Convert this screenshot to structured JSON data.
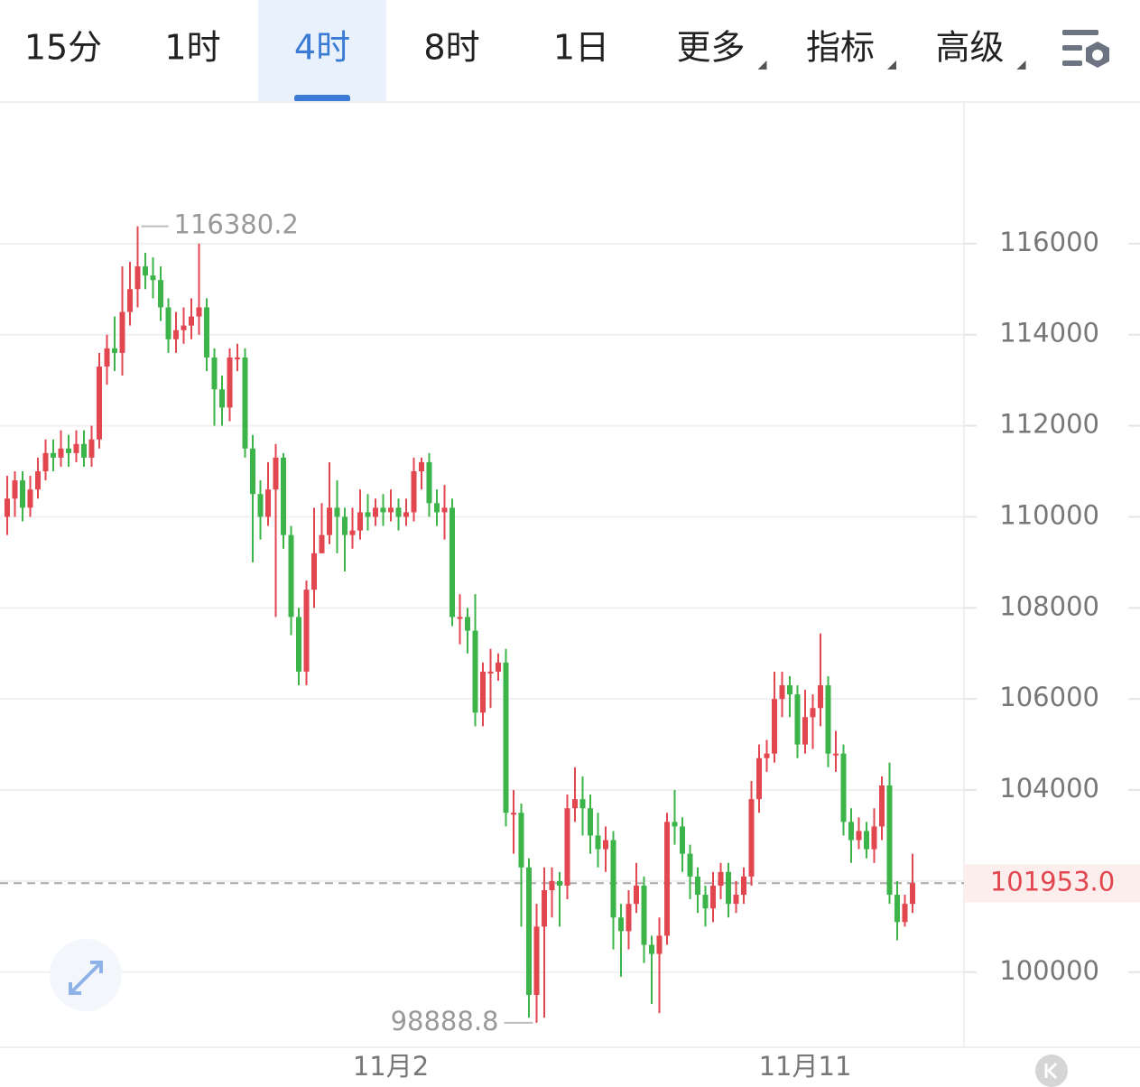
{
  "header": {
    "tabs": [
      "15分",
      "1时",
      "4时",
      "8时",
      "1日",
      "更多",
      "指标",
      "高级"
    ],
    "active_tab": 2
  },
  "chart_data": {
    "type": "candlestick",
    "up_color": "#e2464f",
    "down_color": "#3db449",
    "categories": [
      null,
      null,
      null,
      null,
      null,
      null,
      null,
      null,
      null,
      null,
      null,
      null,
      null,
      null,
      null,
      null,
      null,
      null,
      null,
      null,
      null,
      null,
      null,
      null,
      null,
      null,
      null,
      null,
      null,
      null,
      null,
      null,
      null,
      null,
      null,
      null,
      null,
      null,
      null,
      null,
      null,
      null,
      null,
      null,
      null,
      null,
      null,
      null,
      null,
      null,
      "11月2",
      null,
      null,
      null,
      null,
      null,
      null,
      null,
      null,
      null,
      null,
      null,
      null,
      null,
      null,
      null,
      null,
      null,
      null,
      null,
      null,
      null,
      null,
      null,
      null,
      null,
      null,
      null,
      null,
      null,
      null,
      null,
      null,
      null,
      null,
      null,
      null,
      null,
      null,
      null,
      null,
      null,
      null,
      null,
      null,
      null,
      null,
      null,
      null,
      null,
      null,
      null,
      null,
      null,
      "11月11",
      null,
      null,
      null,
      null,
      null,
      null,
      null,
      null,
      null,
      null,
      null,
      null,
      null,
      null
    ],
    "open": [
      110000,
      110400,
      110800,
      110200,
      110600,
      111000,
      111400,
      111300,
      111500,
      111400,
      111600,
      111300,
      111700,
      113300,
      113700,
      113600,
      114500,
      115000,
      115500,
      115300,
      115200,
      114600,
      113900,
      114100,
      114200,
      114400,
      114600,
      113500,
      112800,
      112400,
      113500,
      113500,
      111500,
      110500,
      110000,
      110600,
      111300,
      109600,
      107800,
      106600,
      108400,
      109200,
      109600,
      110200,
      110000,
      109600,
      109700,
      110100,
      110000,
      110200,
      110100,
      110200,
      110000,
      110100,
      111000,
      111200,
      110300,
      110100,
      110200,
      107800,
      107800,
      107500,
      105700,
      106600,
      106600,
      106800,
      103500,
      103500,
      102300,
      99500,
      101000,
      101800,
      102000,
      101900,
      103600,
      103800,
      103600,
      103000,
      102700,
      102900,
      101200,
      100900,
      101500,
      101900,
      100600,
      100400,
      100800,
      103300,
      103200,
      102600,
      102100,
      101700,
      101400,
      101900,
      102200,
      101500,
      101700,
      102100,
      103800,
      104700,
      104800,
      106000,
      106300,
      106100,
      105000,
      105600,
      105800,
      106300,
      104800,
      104800,
      103300,
      102900,
      103100,
      102700,
      103200,
      104100,
      101700,
      101100,
      101500
    ],
    "high": [
      110900,
      111000,
      111000,
      110900,
      111300,
      111700,
      111700,
      111900,
      111800,
      111900,
      111900,
      112000,
      113600,
      114000,
      114400,
      115500,
      115600,
      116380.2,
      115800,
      115700,
      115500,
      114800,
      114500,
      114600,
      114800,
      116000,
      114800,
      113700,
      113100,
      113700,
      113800,
      113700,
      111800,
      110800,
      111200,
      111600,
      111400,
      109800,
      108000,
      108600,
      110200,
      110300,
      111200,
      110800,
      110200,
      110200,
      110600,
      110500,
      110400,
      110500,
      110600,
      110400,
      110400,
      111300,
      111300,
      111400,
      110600,
      110700,
      110400,
      108300,
      108000,
      108300,
      106800,
      107100,
      107000,
      107100,
      104000,
      103700,
      102500,
      101500,
      102300,
      102300,
      102200,
      103900,
      104500,
      104300,
      103900,
      103500,
      103200,
      103100,
      101500,
      101800,
      102400,
      102100,
      100800,
      101200,
      103500,
      104000,
      103400,
      102800,
      102300,
      101900,
      102200,
      102400,
      102400,
      102000,
      102300,
      104200,
      105000,
      105100,
      106600,
      106600,
      106500,
      106300,
      106200,
      106100,
      107440,
      106500,
      105300,
      105000,
      103600,
      103400,
      103300,
      103600,
      104300,
      104600,
      102000,
      101700,
      102600
    ],
    "low": [
      109600,
      110000,
      109900,
      110000,
      110400,
      110800,
      111000,
      111100,
      111100,
      111200,
      111100,
      111100,
      111500,
      112900,
      113200,
      113100,
      114200,
      114600,
      115000,
      114800,
      114300,
      113600,
      113600,
      113800,
      113900,
      114000,
      113200,
      112000,
      112000,
      112100,
      113200,
      111300,
      109000,
      109500,
      109800,
      107800,
      109300,
      107400,
      106300,
      106300,
      108000,
      109200,
      109400,
      109200,
      108800,
      109300,
      109500,
      109700,
      109800,
      109800,
      109900,
      109700,
      109800,
      109900,
      110600,
      110000,
      109800,
      109500,
      107600,
      107200,
      107000,
      105400,
      105400,
      105800,
      106400,
      103200,
      102600,
      101000,
      99000,
      98888.8,
      99000,
      101200,
      101000,
      101600,
      103300,
      103000,
      102600,
      102300,
      102200,
      100500,
      99900,
      100500,
      101300,
      100200,
      99300,
      99100,
      100600,
      102800,
      102200,
      101600,
      101300,
      101000,
      101100,
      101600,
      101200,
      101300,
      101500,
      101900,
      103500,
      104400,
      104600,
      105600,
      105600,
      104700,
      104800,
      104900,
      105400,
      104500,
      104400,
      103000,
      102400,
      102700,
      102500,
      102400,
      102900,
      101500,
      100700,
      101000,
      101300
    ],
    "close": [
      110400,
      110800,
      110200,
      110600,
      111000,
      111400,
      111300,
      111500,
      111400,
      111600,
      111300,
      111700,
      113300,
      113700,
      113600,
      114500,
      115000,
      115500,
      115300,
      115200,
      114600,
      113900,
      114100,
      114200,
      114400,
      114600,
      113500,
      112800,
      112400,
      113500,
      113500,
      111500,
      110500,
      110000,
      110600,
      111300,
      109600,
      107800,
      106600,
      108400,
      109200,
      109600,
      110200,
      110000,
      109600,
      109700,
      110100,
      110000,
      110200,
      110100,
      110200,
      110000,
      110100,
      111000,
      111200,
      110300,
      110100,
      110200,
      107800,
      107800,
      107500,
      105700,
      106600,
      106600,
      106800,
      103500,
      103500,
      102300,
      99500,
      101000,
      101800,
      102000,
      101900,
      103600,
      103800,
      103600,
      103000,
      102700,
      102900,
      101200,
      100900,
      101500,
      101900,
      100600,
      100400,
      100800,
      103300,
      103200,
      102600,
      102100,
      101700,
      101400,
      101900,
      102200,
      101500,
      101700,
      102100,
      103800,
      104700,
      104800,
      106000,
      106300,
      106100,
      105000,
      105600,
      105800,
      106300,
      104800,
      104800,
      103300,
      102900,
      103100,
      102700,
      103200,
      104100,
      101700,
      101100,
      101500,
      101953
    ],
    "ylim": [
      98350,
      119110
    ],
    "yticks": [
      100000,
      102000,
      104000,
      106000,
      108000,
      110000,
      112000,
      114000,
      116000
    ],
    "grid": true,
    "high_annotation": 116380.2,
    "low_annotation": 98888.8,
    "last_price": {
      "value": 101953,
      "label": "101953.0"
    }
  }
}
